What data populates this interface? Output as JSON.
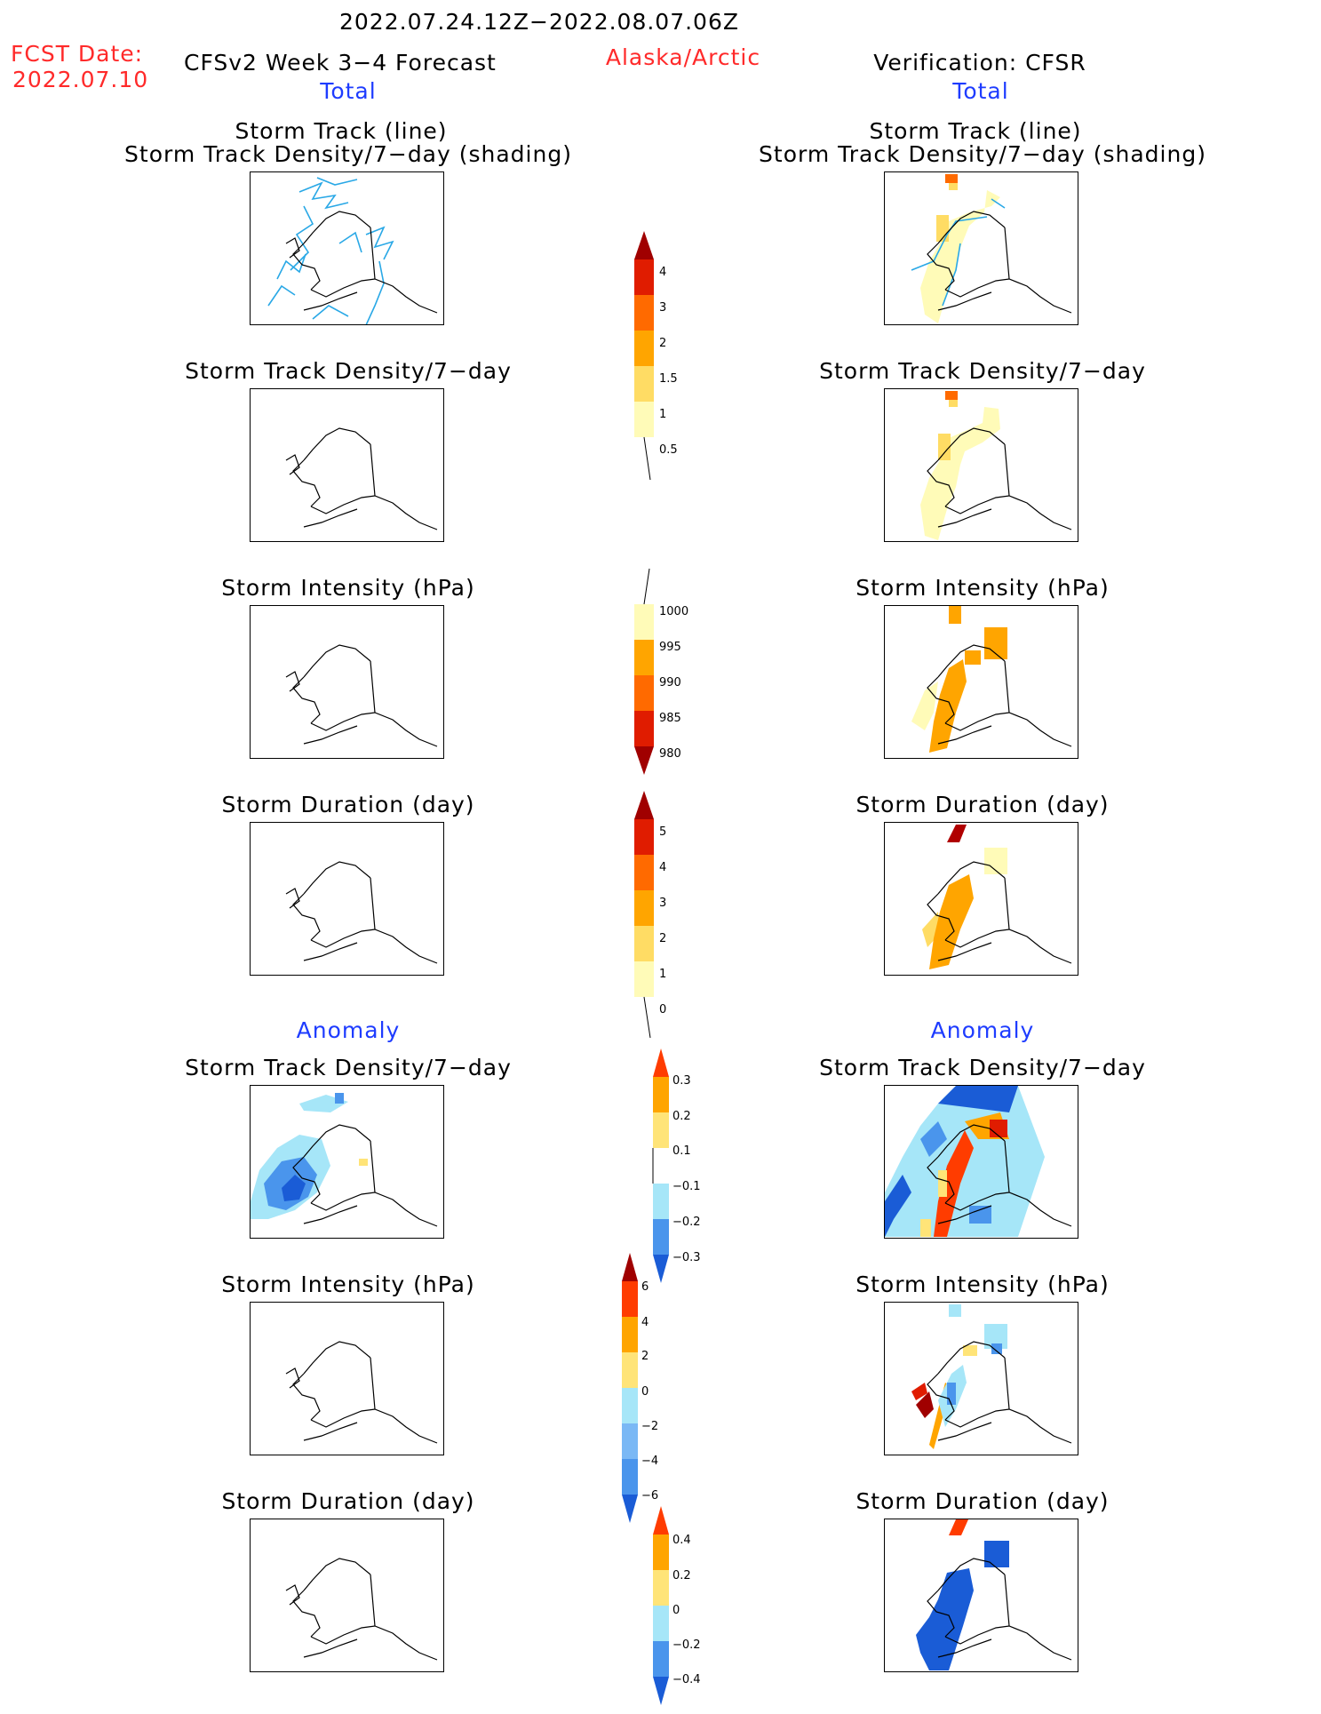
{
  "header": {
    "date_range": "2022.07.24.12Z−2022.08.07.06Z",
    "fcst_date_label": "FCST Date:",
    "fcst_date_value": "2022.07.10",
    "forecast_title": "CFSv2  Week 3−4  Forecast",
    "region": "Alaska/Arctic",
    "verification_title": "Verification: CFSR"
  },
  "columns": {
    "left": {
      "section_total": "Total",
      "section_anomaly": "Anomaly"
    },
    "right": {
      "section_total": "Total",
      "section_anomaly": "Anomaly"
    }
  },
  "panel_titles": {
    "track_line": "Storm Track (line)",
    "track_shading": "Storm Track Density/7−day (shading)",
    "density": "Storm Track Density/7−day",
    "intensity": "Storm Intensity (hPa)",
    "duration": "Storm Duration (day)"
  },
  "colorbars": {
    "density_total": {
      "labels": [
        "4",
        "3",
        "2",
        "1.5",
        "1",
        "0.5"
      ]
    },
    "intensity_total": {
      "labels": [
        "1000",
        "995",
        "990",
        "985",
        "980"
      ]
    },
    "duration_total": {
      "labels": [
        "5",
        "4",
        "3",
        "2",
        "1",
        "0"
      ]
    },
    "density_anomaly": {
      "labels": [
        "0.3",
        "0.2",
        "0.1",
        "−0.1",
        "−0.2",
        "−0.3"
      ]
    },
    "intensity_anomaly": {
      "labels": [
        "6",
        "4",
        "2",
        "0",
        "−2",
        "−4",
        "−6"
      ]
    },
    "duration_anomaly": {
      "labels": [
        "0.4",
        "0.2",
        "0",
        "−0.2",
        "−0.4"
      ]
    }
  },
  "colors": {
    "warm_scale": [
      "#fffbb8",
      "#ffdc64",
      "#ffa500",
      "#ff6a00",
      "#e01c00",
      "#a00000"
    ],
    "intensity_scale": [
      "#fffbb8",
      "#ffa500",
      "#ff6a00",
      "#e01c00",
      "#a00000"
    ],
    "anomaly_scale": [
      "#1a5cd6",
      "#4a95ec",
      "#a6e6f8",
      "#ffffff",
      "#ffe478",
      "#ffa500",
      "#ff3c00"
    ],
    "storm_track_line": "#29a8e6"
  }
}
